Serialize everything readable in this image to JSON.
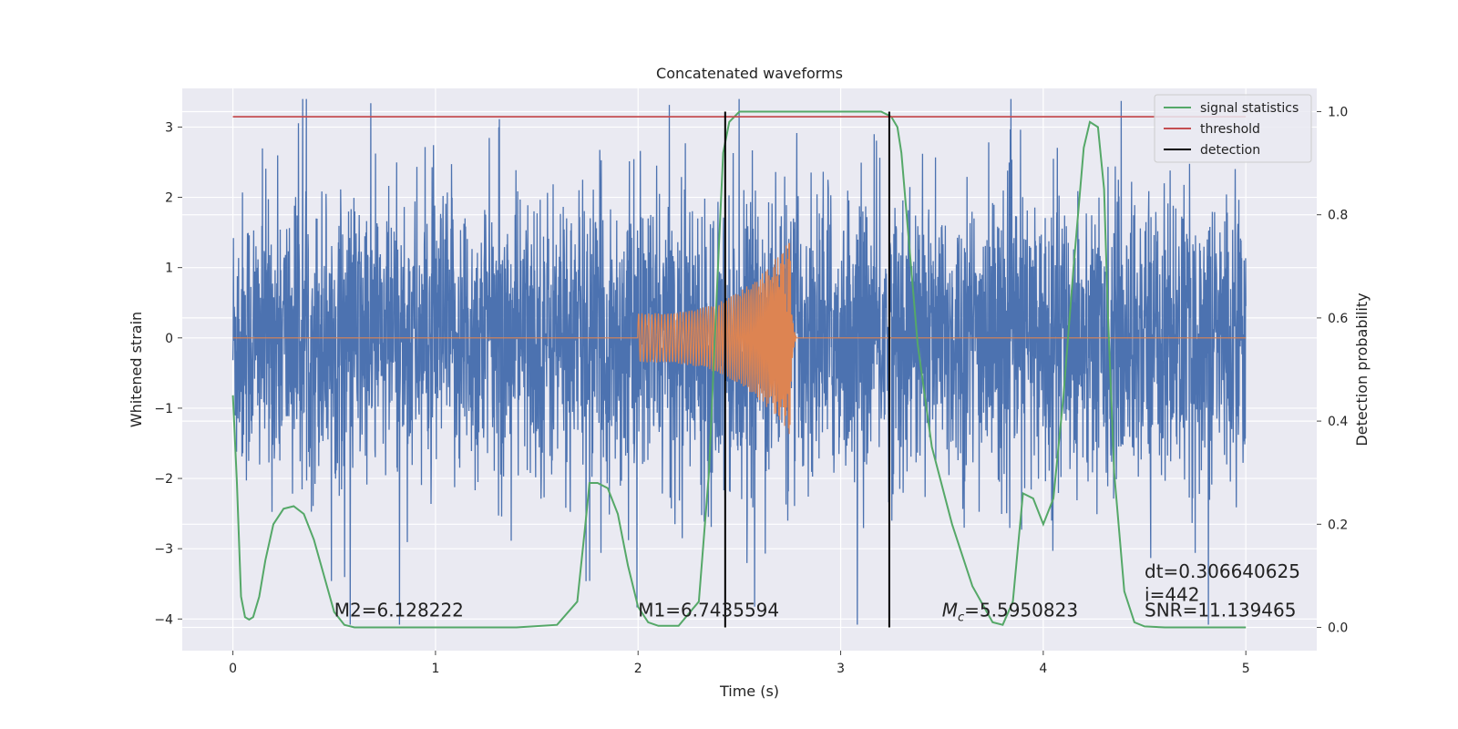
{
  "chart_data": {
    "type": "line",
    "title": "Concatenated waveforms",
    "xlabel": "Time (s)",
    "ylabel": "Whitened strain",
    "y2label": "Detection probability",
    "xlim": [
      -0.25,
      5.35
    ],
    "ylim": [
      -4.45,
      3.55
    ],
    "y2lim": [
      -0.045,
      1.045
    ],
    "xticks": [
      0,
      1,
      2,
      3,
      4,
      5
    ],
    "yticks": [
      3,
      2,
      1,
      0,
      -1,
      -2,
      -3,
      -4
    ],
    "y2ticks": [
      1.0,
      0.8,
      0.6,
      0.4,
      0.2,
      0.0
    ],
    "ytick_labels": [
      "3",
      "2",
      "1",
      "0",
      "−1",
      "−2",
      "−3",
      "−4"
    ],
    "y2tick_labels": [
      "1.0",
      "0.8",
      "0.6",
      "0.4",
      "0.2",
      "0.0"
    ],
    "grid": true,
    "legend_position": "top-right",
    "series": [
      {
        "name": "",
        "color": "#4c72b0",
        "axis": "left",
        "kind": "noise",
        "x_range": [
          0,
          5
        ],
        "amplitude_typical": 1.2,
        "amplitude_peak": 3.4
      },
      {
        "name": "",
        "color": "#dd8452",
        "axis": "left",
        "kind": "chirp",
        "x_range": [
          0,
          5
        ],
        "chirp_start": 2.0,
        "chirp_merger": 2.75,
        "amplitude_start": 0.35,
        "amplitude_peak": 1.4
      },
      {
        "name": "signal statistics",
        "color": "#55a868",
        "axis": "right",
        "x": [
          0,
          0.02,
          0.04,
          0.06,
          0.08,
          0.1,
          0.13,
          0.16,
          0.2,
          0.25,
          0.3,
          0.35,
          0.4,
          0.45,
          0.5,
          0.55,
          0.6,
          0.8,
          1.0,
          1.2,
          1.4,
          1.6,
          1.7,
          1.74,
          1.76,
          1.8,
          1.85,
          1.9,
          1.95,
          2.0,
          2.05,
          2.1,
          2.2,
          2.3,
          2.35,
          2.4,
          2.42,
          2.45,
          2.5,
          2.6,
          2.8,
          3.0,
          3.2,
          3.25,
          3.28,
          3.3,
          3.33,
          3.38,
          3.45,
          3.55,
          3.65,
          3.75,
          3.8,
          3.85,
          3.9,
          3.95,
          4.0,
          4.05,
          4.1,
          4.15,
          4.2,
          4.23,
          4.27,
          4.3,
          4.32,
          4.35,
          4.4,
          4.45,
          4.5,
          4.6,
          4.8,
          5.0
        ],
        "values": [
          0.45,
          0.28,
          0.06,
          0.02,
          0.015,
          0.02,
          0.06,
          0.13,
          0.2,
          0.23,
          0.235,
          0.22,
          0.17,
          0.1,
          0.03,
          0.005,
          0.0,
          0.0,
          0.0,
          0.0,
          0.0,
          0.005,
          0.05,
          0.2,
          0.28,
          0.28,
          0.27,
          0.22,
          0.12,
          0.04,
          0.01,
          0.003,
          0.003,
          0.05,
          0.3,
          0.75,
          0.92,
          0.98,
          1.0,
          1.0,
          1.0,
          1.0,
          1.0,
          0.99,
          0.97,
          0.92,
          0.78,
          0.55,
          0.35,
          0.2,
          0.08,
          0.01,
          0.005,
          0.05,
          0.26,
          0.25,
          0.2,
          0.25,
          0.45,
          0.7,
          0.93,
          0.98,
          0.97,
          0.85,
          0.6,
          0.3,
          0.07,
          0.01,
          0.002,
          0.0,
          0.0,
          0.0
        ]
      },
      {
        "name": "threshold",
        "color": "#c44e52",
        "axis": "right",
        "x": [
          0,
          5
        ],
        "values": [
          0.99,
          0.99
        ]
      },
      {
        "name": "detection",
        "color": "#000000",
        "axis": "right",
        "kind": "vlines",
        "x": [
          2.43,
          3.24
        ],
        "range": [
          0.0,
          1.0
        ]
      }
    ],
    "annotations": [
      {
        "id": "m2",
        "text": "M2=6.128222",
        "x": 0.5,
        "y": 0.0,
        "axis": "right",
        "size": "large"
      },
      {
        "id": "m1",
        "text": "M1=6.7435594",
        "x": 2.0,
        "y": 0.0,
        "axis": "right",
        "size": "large"
      },
      {
        "id": "mc",
        "text": "M_c=5.5950823",
        "x": 3.5,
        "y": 0.0,
        "axis": "right",
        "size": "large"
      },
      {
        "id": "snr",
        "text": "SNR=11.139465",
        "x": 4.5,
        "y": 0.0,
        "axis": "right",
        "size": "large"
      },
      {
        "id": "i",
        "text": " i=442",
        "x": 4.5,
        "y": 0.03,
        "axis": "right",
        "size": "large"
      },
      {
        "id": "dt",
        "text": "dt=0.306640625",
        "x": 4.5,
        "y": 0.075,
        "axis": "right",
        "size": "large"
      }
    ]
  }
}
